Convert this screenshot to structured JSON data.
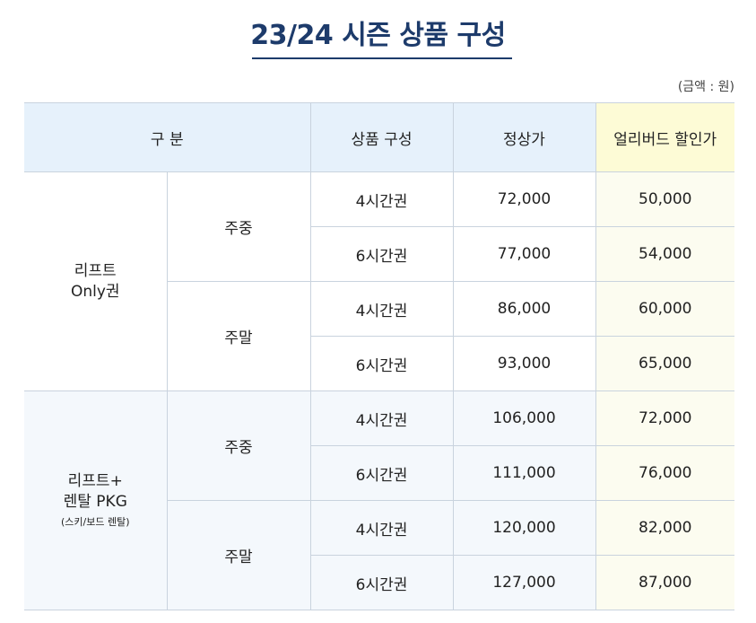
{
  "title": "23/24 시즌 상품 구성",
  "unit_note": "(금액 : 원)",
  "headers": {
    "category": "구 분",
    "product": "상품 구성",
    "regular": "정상가",
    "early": "얼리버드 할인가"
  },
  "groups": [
    {
      "name_line1": "리프트",
      "name_line2": "Only권",
      "name_sub": "",
      "periods": [
        {
          "label": "주중",
          "rows": [
            {
              "product": "4시간권",
              "regular": "72,000",
              "early": "50,000"
            },
            {
              "product": "6시간권",
              "regular": "77,000",
              "early": "54,000"
            }
          ]
        },
        {
          "label": "주말",
          "rows": [
            {
              "product": "4시간권",
              "regular": "86,000",
              "early": "60,000"
            },
            {
              "product": "6시간권",
              "regular": "93,000",
              "early": "65,000"
            }
          ]
        }
      ]
    },
    {
      "name_line1": "리프트+",
      "name_line2": "렌탈 PKG",
      "name_sub": "(스키/보드 렌탈)",
      "periods": [
        {
          "label": "주중",
          "rows": [
            {
              "product": "4시간권",
              "regular": "106,000",
              "early": "72,000"
            },
            {
              "product": "6시간권",
              "regular": "111,000",
              "early": "76,000"
            }
          ]
        },
        {
          "label": "주말",
          "rows": [
            {
              "product": "4시간권",
              "regular": "120,000",
              "early": "82,000"
            },
            {
              "product": "6시간권",
              "regular": "127,000",
              "early": "87,000"
            }
          ]
        }
      ]
    }
  ]
}
